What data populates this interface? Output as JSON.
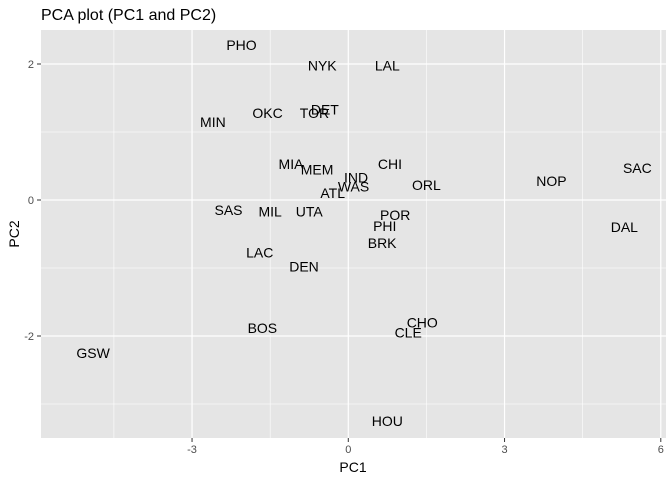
{
  "chart_data": {
    "type": "scatter",
    "title": "PCA plot (PC1 and PC2)",
    "xlabel": "PC1",
    "ylabel": "PC2",
    "xlim": [
      -5.9,
      6.1
    ],
    "ylim": [
      -3.5,
      2.5
    ],
    "xticks": [
      -3,
      0,
      3,
      6
    ],
    "yticks": [
      -2,
      0,
      2
    ],
    "grid": true,
    "background": "#e5e5e5",
    "gridColor": "#ffffff",
    "points": [
      {
        "label": "PHO",
        "x": -2.05,
        "y": 2.28
      },
      {
        "label": "NYK",
        "x": -0.5,
        "y": 1.98
      },
      {
        "label": "LAL",
        "x": 0.75,
        "y": 1.98
      },
      {
        "label": "OKC",
        "x": -1.55,
        "y": 1.28
      },
      {
        "label": "TOR",
        "x": -0.65,
        "y": 1.28
      },
      {
        "label": "DET",
        "x": -0.45,
        "y": 1.33
      },
      {
        "label": "MIN",
        "x": -2.6,
        "y": 1.15
      },
      {
        "label": "MIA",
        "x": -1.1,
        "y": 0.53
      },
      {
        "label": "MEM",
        "x": -0.6,
        "y": 0.45
      },
      {
        "label": "CHI",
        "x": 0.8,
        "y": 0.53
      },
      {
        "label": "IND",
        "x": 0.15,
        "y": 0.33
      },
      {
        "label": "WAS",
        "x": 0.1,
        "y": 0.2
      },
      {
        "label": "ATL",
        "x": -0.3,
        "y": 0.1
      },
      {
        "label": "ORL",
        "x": 1.5,
        "y": 0.22
      },
      {
        "label": "NOP",
        "x": 3.9,
        "y": 0.28
      },
      {
        "label": "SAC",
        "x": 5.55,
        "y": 0.47
      },
      {
        "label": "SAS",
        "x": -2.3,
        "y": -0.15
      },
      {
        "label": "MIL",
        "x": -1.5,
        "y": -0.17
      },
      {
        "label": "UTA",
        "x": -0.75,
        "y": -0.17
      },
      {
        "label": "POR",
        "x": 0.9,
        "y": -0.22
      },
      {
        "label": "PHI",
        "x": 0.7,
        "y": -0.38
      },
      {
        "label": "DAL",
        "x": 5.3,
        "y": -0.4
      },
      {
        "label": "BRK",
        "x": 0.65,
        "y": -0.63
      },
      {
        "label": "LAC",
        "x": -1.7,
        "y": -0.77
      },
      {
        "label": "DEN",
        "x": -0.85,
        "y": -0.98
      },
      {
        "label": "BOS",
        "x": -1.65,
        "y": -1.88
      },
      {
        "label": "CHO",
        "x": 1.42,
        "y": -1.8
      },
      {
        "label": "CLE",
        "x": 1.15,
        "y": -1.95
      },
      {
        "label": "GSW",
        "x": -4.9,
        "y": -2.25
      },
      {
        "label": "HOU",
        "x": 0.75,
        "y": -3.25
      }
    ]
  }
}
